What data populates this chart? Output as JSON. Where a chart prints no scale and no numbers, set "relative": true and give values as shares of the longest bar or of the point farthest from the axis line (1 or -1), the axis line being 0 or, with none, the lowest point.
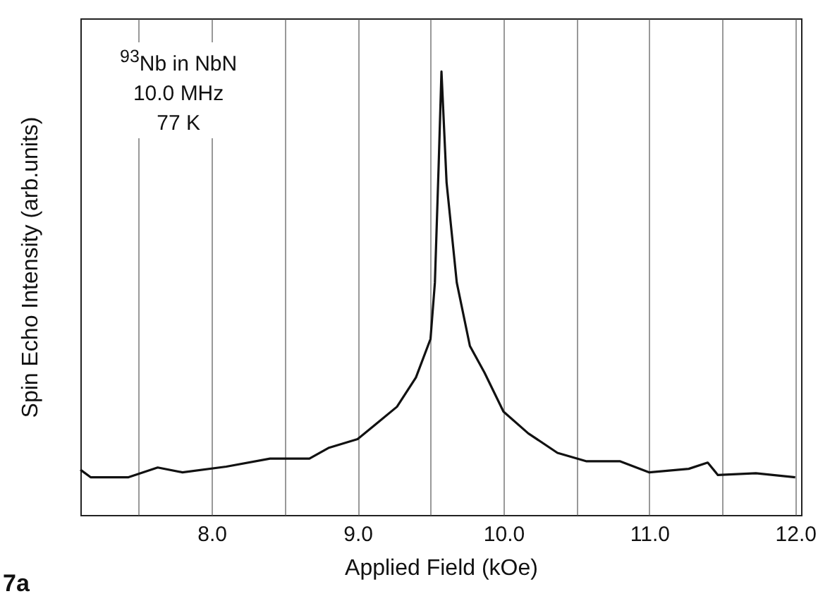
{
  "chart_data": {
    "type": "line",
    "relative": true,
    "xlabel": "Applied Field (kOe)",
    "ylabel": "Spin Echo Intensity (arb.units)",
    "annotations": [
      "$^{93}$Nb in NbN\n10.0 MHz\n77 K",
      "7a"
    ],
    "xlim": [
      7.1,
      12.04
    ],
    "xticks": [
      {
        "value": 7.5,
        "label": null
      },
      {
        "value": 8.0,
        "label": "8.0"
      },
      {
        "value": 8.5,
        "label": null
      },
      {
        "value": 9.0,
        "label": "9.0"
      },
      {
        "value": 9.5,
        "label": null
      },
      {
        "value": 10.0,
        "label": "10.0"
      },
      {
        "value": 10.5,
        "label": null
      },
      {
        "value": 11.0,
        "label": "11.0"
      },
      {
        "value": 11.5,
        "label": null
      },
      {
        "value": 12.0,
        "label": "12.0"
      }
    ],
    "grid": "x",
    "line_style": "solid",
    "x": [
      7.1,
      7.17,
      7.43,
      7.63,
      7.8,
      8.1,
      8.4,
      8.67,
      8.8,
      9.0,
      9.13,
      9.27,
      9.4,
      9.5,
      9.53,
      9.555,
      9.575,
      9.61,
      9.68,
      9.77,
      9.87,
      10.0,
      10.17,
      10.37,
      10.57,
      10.8,
      11.0,
      11.27,
      11.4,
      11.47,
      11.73,
      12.0
    ],
    "series": [
      {
        "color": "#111111",
        "values": [
          0.102,
          0.085,
          0.085,
          0.107,
          0.096,
          0.109,
          0.127,
          0.127,
          0.151,
          0.171,
          0.206,
          0.244,
          0.31,
          0.397,
          0.524,
          0.78,
          1.0,
          0.75,
          0.524,
          0.381,
          0.321,
          0.233,
          0.184,
          0.14,
          0.121,
          0.121,
          0.096,
          0.104,
          0.118,
          0.09,
          0.094,
          0.085
        ]
      }
    ]
  }
}
